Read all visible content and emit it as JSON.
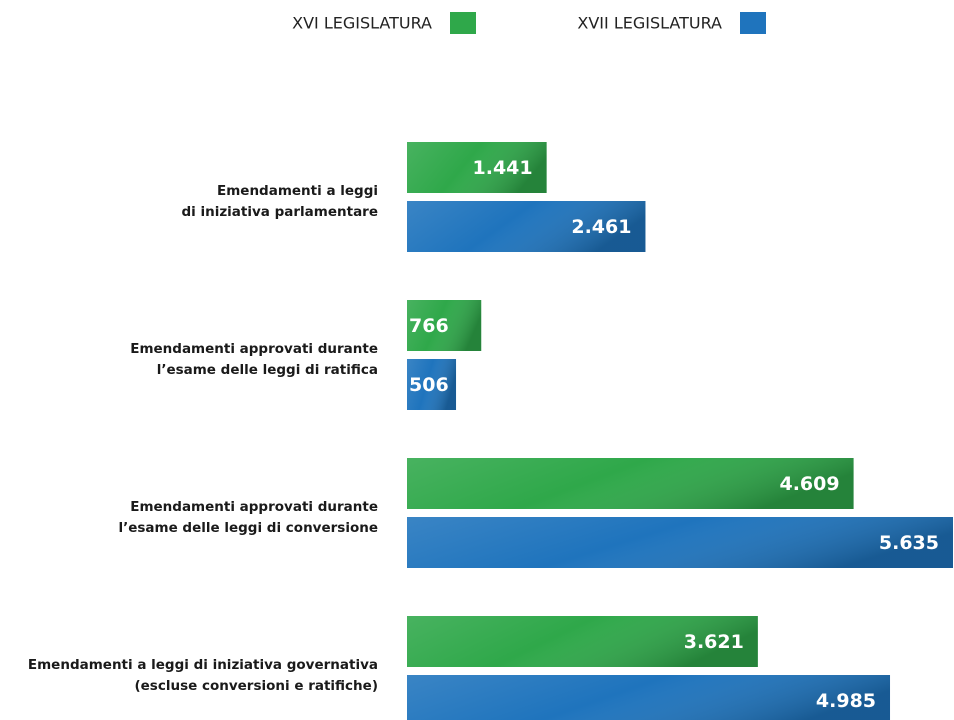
{
  "chart_data": {
    "type": "hbar",
    "categories": [
      [
        "Emendamenti a leggi",
        "di iniziativa parlamentare"
      ],
      [
        "Emendamenti approvati durante",
        "l’esame delle leggi di ratifica"
      ],
      [
        "Emendamenti approvati durante",
        "l’esame delle leggi di conversione"
      ],
      [
        "Emendamenti a leggi di iniziativa governativa",
        "(escluse conversioni e ratifiche)"
      ]
    ],
    "series": [
      {
        "name": "XVI LEGISLATURA",
        "color": "#2fa84a",
        "values": [
          1441,
          766,
          4609,
          3621
        ],
        "value_labels": [
          "1.441",
          "766",
          "4.609",
          "3.621"
        ]
      },
      {
        "name": "XVII LEGISLATURA",
        "color": "#1f74bd",
        "values": [
          2461,
          506,
          5635,
          4985
        ],
        "value_labels": [
          "2.461",
          "506",
          "5.635",
          "4.985"
        ]
      }
    ]
  }
}
